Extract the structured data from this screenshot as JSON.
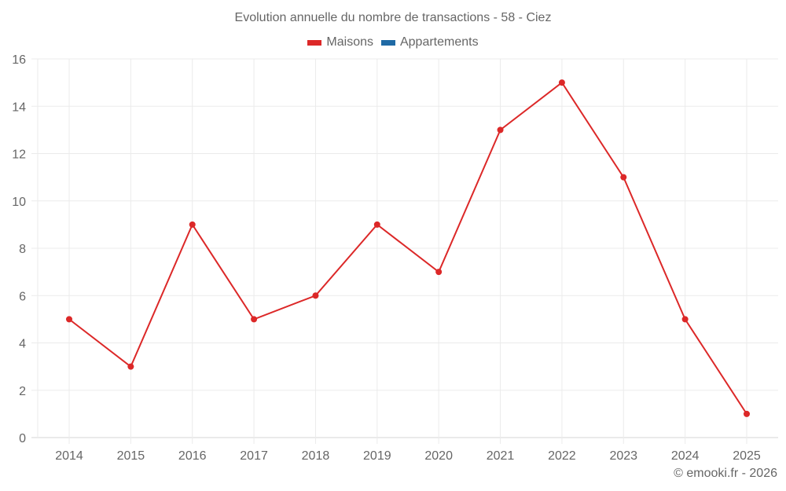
{
  "chart_data": {
    "type": "line",
    "title": "Evolution annuelle du nombre de transactions - 58 - Ciez",
    "categories": [
      "2014",
      "2015",
      "2016",
      "2017",
      "2018",
      "2019",
      "2020",
      "2021",
      "2022",
      "2023",
      "2024",
      "2025"
    ],
    "series": [
      {
        "name": "Maisons",
        "color": "#dc2828",
        "values": [
          5,
          3,
          9,
          5,
          6,
          9,
          7,
          13,
          15,
          11,
          5,
          1
        ]
      },
      {
        "name": "Appartements",
        "color": "#1f6aa5",
        "values": []
      }
    ],
    "xlabel": "",
    "ylabel": "",
    "ylim": [
      0,
      16
    ],
    "yticks": [
      0,
      2,
      4,
      6,
      8,
      10,
      12,
      14,
      16
    ],
    "grid": true,
    "legend_position": "top"
  },
  "footer": {
    "credit": "© emooki.fr - 2026"
  }
}
